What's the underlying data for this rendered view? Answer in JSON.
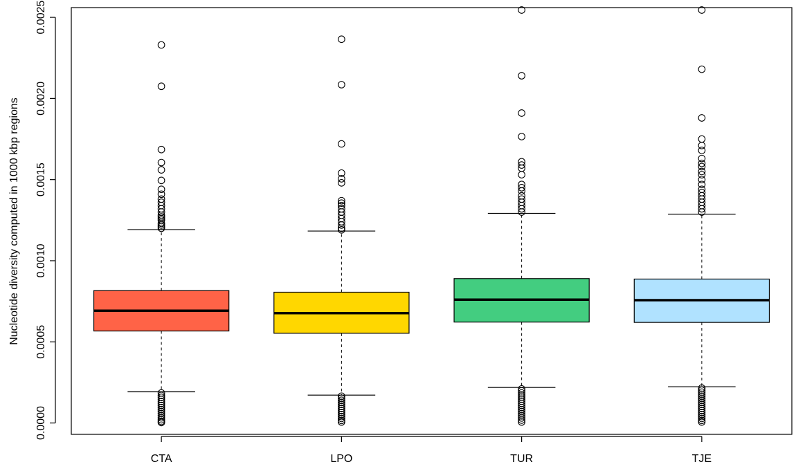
{
  "chart_data": {
    "type": "box",
    "title": "",
    "xlabel": "",
    "ylabel": "Nucleotide diversity computed in 1000 kbp regions",
    "ylim": [
      -7e-05,
      0.00256
    ],
    "yticks": [
      "0.0000",
      "0.0005",
      "0.0010",
      "0.0015",
      "0.0020",
      "0.0025"
    ],
    "ytick_values": [
      0,
      0.0005,
      0.001,
      0.0015,
      0.002,
      0.0025
    ],
    "grid": false,
    "categories": [
      "CTA",
      "LPO",
      "TUR",
      "TJE"
    ],
    "colors": [
      "#FF6347",
      "#FFD700",
      "#43CD80",
      "#B0E2FF"
    ],
    "boxes": [
      {
        "name": "CTA",
        "whisker_low": 0.000192,
        "q1": 0.000567,
        "median": 0.000692,
        "q3": 0.000816,
        "whisker_high": 0.001192,
        "outliers_high": [
          0.00233,
          0.002075,
          0.001685,
          0.001605,
          0.00156,
          0.001495,
          0.00144,
          0.00141,
          0.00138,
          0.00136,
          0.00134,
          0.00132,
          0.0013,
          0.00128,
          0.00127,
          0.00126,
          0.00125,
          0.00123,
          0.00122,
          0.00121,
          0.0012
        ],
        "outliers_low": [
          0.000185,
          0.00017,
          0.000158,
          0.000145,
          0.000132,
          0.00012,
          0.000108,
          9.5e-05,
          8.2e-05,
          7e-05,
          5.8e-05,
          4.5e-05,
          3.2e-05,
          2e-05,
          1e-05,
          3e-06
        ]
      },
      {
        "name": "LPO",
        "whisker_low": 0.000172,
        "q1": 0.000553,
        "median": 0.000677,
        "q3": 0.000806,
        "whisker_high": 0.001183,
        "outliers_high": [
          0.002365,
          0.002085,
          0.00172,
          0.00154,
          0.001505,
          0.00148,
          0.00137,
          0.001355,
          0.00134,
          0.00132,
          0.0013,
          0.00128,
          0.00126,
          0.00124,
          0.00122,
          0.0012,
          0.00119
        ],
        "outliers_low": [
          0.000165,
          0.000152,
          0.00014,
          0.000127,
          0.000115,
          0.000102,
          9e-05,
          7.7e-05,
          6.5e-05,
          5.2e-05,
          4e-05,
          2.8e-05,
          1.6e-05,
          6e-06
        ]
      },
      {
        "name": "TUR",
        "whisker_low": 0.000219,
        "q1": 0.000622,
        "median": 0.00076,
        "q3": 0.00089,
        "whisker_high": 0.001292,
        "outliers_high": [
          0.002545,
          0.00214,
          0.00191,
          0.001765,
          0.00161,
          0.00159,
          0.00157,
          0.00153,
          0.00147,
          0.00145,
          0.00143,
          0.0014,
          0.00138,
          0.00136,
          0.00134,
          0.00132,
          0.0013
        ],
        "outliers_low": [
          0.00021,
          0.000198,
          0.000185,
          0.000172,
          0.00016,
          0.000147,
          0.000134,
          0.000121,
          0.000108,
          9.5e-05,
          8.2e-05,
          7e-05,
          5.7e-05,
          4.4e-05,
          3.1e-05,
          1.8e-05,
          6e-06
        ]
      },
      {
        "name": "TJE",
        "whisker_low": 0.000223,
        "q1": 0.00062,
        "median": 0.000757,
        "q3": 0.000887,
        "whisker_high": 0.001287,
        "outliers_high": [
          0.002545,
          0.00218,
          0.00188,
          0.00175,
          0.00171,
          0.00168,
          0.00163,
          0.0016,
          0.00158,
          0.00155,
          0.00153,
          0.0015,
          0.00147,
          0.00144,
          0.00142,
          0.0014,
          0.00138,
          0.00136,
          0.00134,
          0.00132,
          0.0013
        ],
        "outliers_low": [
          0.000215,
          0.000202,
          0.00019,
          0.000177,
          0.000165,
          0.000152,
          0.00014,
          0.000127,
          0.000115,
          0.000102,
          9e-05,
          7.7e-05,
          6.5e-05,
          5.2e-05,
          4e-05,
          2.8e-05,
          1.6e-05,
          6e-06
        ]
      }
    ]
  }
}
